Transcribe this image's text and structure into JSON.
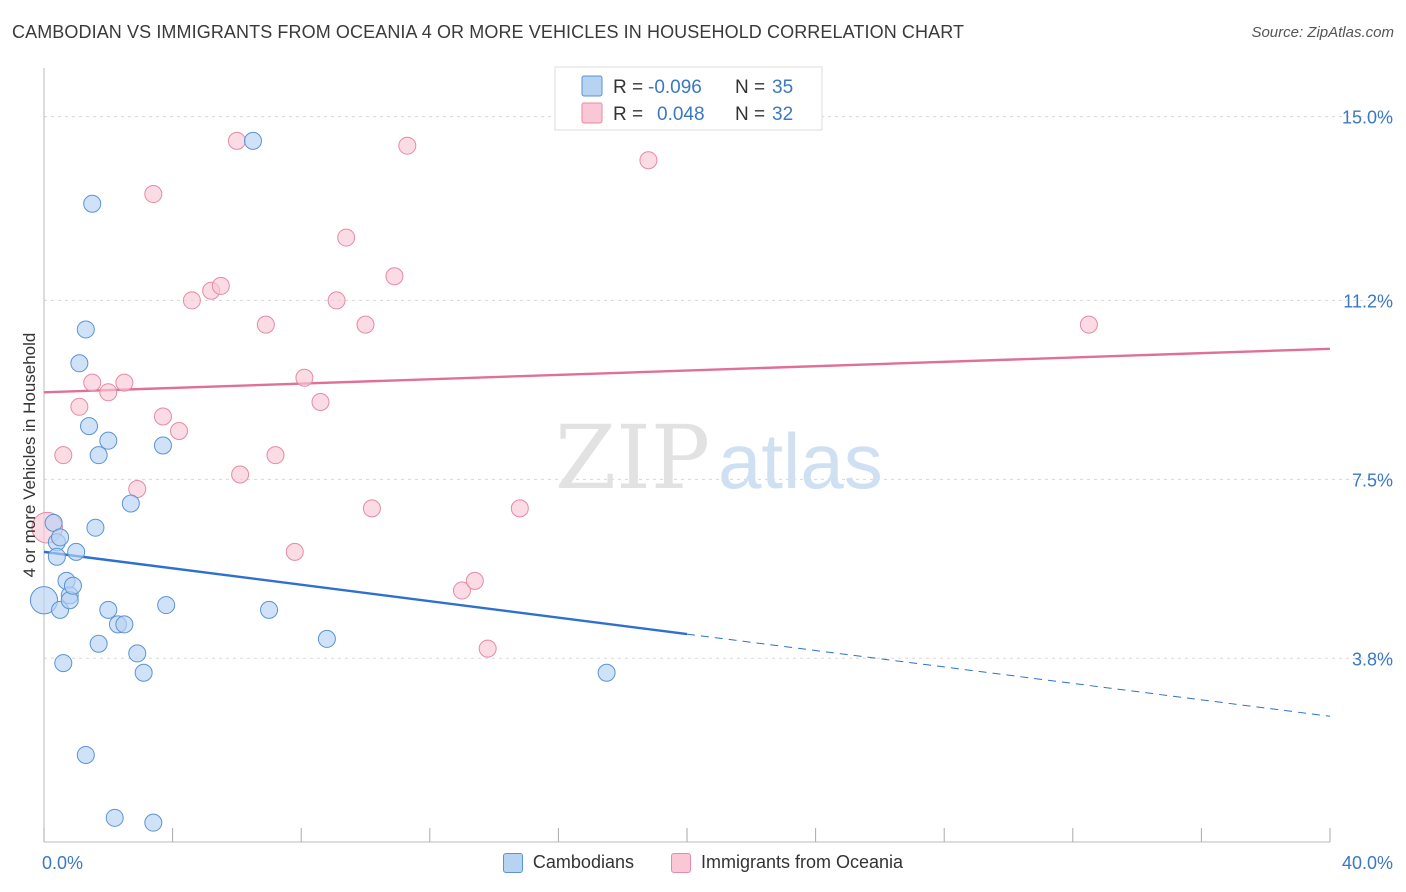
{
  "title": "CAMBODIAN VS IMMIGRANTS FROM OCEANIA 4 OR MORE VEHICLES IN HOUSEHOLD CORRELATION CHART",
  "source": "Source: ZipAtlas.com",
  "watermark": {
    "zip": "ZIP",
    "atlas": "atlas"
  },
  "colors": {
    "cambodians_fill": "#b7d3f2",
    "cambodians_stroke": "#5b93d6",
    "cambodians_line": "#2e6fd0",
    "oceania_fill": "#f9c7d6",
    "oceania_stroke": "#e58aa8",
    "oceania_line": "#e07098",
    "tick_text": "#3b78c4",
    "grid": "#d8d8d8"
  },
  "legend": {
    "rows": [
      {
        "r_label": "R =",
        "r_value": "-0.096",
        "n_label": "N =",
        "n_value": "35"
      },
      {
        "r_label": "R =",
        "r_value": "0.048",
        "n_label": "N =",
        "n_value": "32"
      }
    ]
  },
  "bottom_legend": [
    "Cambodians",
    "Immigrants from Oceania"
  ],
  "chart_data": {
    "type": "scatter",
    "xlabel": "",
    "ylabel": "4 or more Vehicles in Household",
    "xlim": [
      0,
      40
    ],
    "ylim": [
      0,
      15.8
    ],
    "x_tick_labels": [
      "0.0%",
      "40.0%"
    ],
    "y_ticks": [
      3.8,
      7.5,
      11.2,
      15.0
    ],
    "y_tick_labels": [
      "3.8%",
      "7.5%",
      "11.2%",
      "15.0%"
    ],
    "grid": true,
    "legend_position": "top-center",
    "series": [
      {
        "name": "Cambodians",
        "points": [
          [
            0.0,
            5.0,
            1.6
          ],
          [
            0.3,
            6.6,
            1
          ],
          [
            0.4,
            6.2,
            1
          ],
          [
            0.5,
            6.3,
            1
          ],
          [
            0.4,
            5.9,
            1
          ],
          [
            0.5,
            4.8,
            1
          ],
          [
            0.6,
            3.7,
            1
          ],
          [
            0.7,
            5.4,
            1
          ],
          [
            0.8,
            5.1,
            1
          ],
          [
            0.8,
            5.0,
            1
          ],
          [
            0.9,
            5.3,
            1
          ],
          [
            1.0,
            6.0,
            1
          ],
          [
            1.1,
            9.9,
            1
          ],
          [
            1.3,
            10.6,
            1
          ],
          [
            1.3,
            1.8,
            1
          ],
          [
            1.4,
            8.6,
            1
          ],
          [
            1.5,
            13.2,
            1
          ],
          [
            1.6,
            6.5,
            1
          ],
          [
            1.7,
            8.0,
            1
          ],
          [
            1.7,
            4.1,
            1
          ],
          [
            2.0,
            8.3,
            1
          ],
          [
            2.0,
            4.8,
            1
          ],
          [
            2.2,
            0.5,
            1
          ],
          [
            2.3,
            4.5,
            1
          ],
          [
            2.5,
            4.5,
            1
          ],
          [
            2.7,
            7.0,
            1
          ],
          [
            2.9,
            3.9,
            1
          ],
          [
            3.1,
            3.5,
            1
          ],
          [
            3.4,
            0.4,
            1
          ],
          [
            3.7,
            8.2,
            1
          ],
          [
            3.8,
            4.9,
            1
          ],
          [
            6.5,
            14.5,
            1
          ],
          [
            7.0,
            4.8,
            1
          ],
          [
            8.8,
            4.2,
            1
          ],
          [
            17.5,
            3.5,
            1
          ]
        ],
        "trend": {
          "x": [
            0,
            20
          ],
          "y": [
            6.0,
            4.3
          ]
        },
        "trend_extension": {
          "x": [
            20,
            40
          ],
          "y": [
            4.3,
            2.6
          ]
        }
      },
      {
        "name": "Immigrants from Oceania",
        "points": [
          [
            0.1,
            6.5,
            1.8
          ],
          [
            0.6,
            8.0,
            1
          ],
          [
            1.1,
            9.0,
            1
          ],
          [
            1.5,
            9.5,
            1
          ],
          [
            2.0,
            9.3,
            1
          ],
          [
            2.5,
            9.5,
            1
          ],
          [
            2.9,
            7.3,
            1
          ],
          [
            3.4,
            13.4,
            1
          ],
          [
            3.7,
            8.8,
            1
          ],
          [
            4.2,
            8.5,
            1
          ],
          [
            4.6,
            11.2,
            1
          ],
          [
            5.2,
            11.4,
            1
          ],
          [
            5.5,
            11.5,
            1
          ],
          [
            6.1,
            7.6,
            1
          ],
          [
            6.0,
            14.5,
            1
          ],
          [
            6.9,
            10.7,
            1
          ],
          [
            7.2,
            8.0,
            1
          ],
          [
            7.8,
            6.0,
            1
          ],
          [
            8.1,
            9.6,
            1
          ],
          [
            8.6,
            9.1,
            1
          ],
          [
            9.1,
            11.2,
            1
          ],
          [
            9.4,
            12.5,
            1
          ],
          [
            10.0,
            10.7,
            1
          ],
          [
            10.2,
            6.9,
            1
          ],
          [
            10.9,
            11.7,
            1
          ],
          [
            11.3,
            14.4,
            1
          ],
          [
            13.0,
            5.2,
            1
          ],
          [
            13.4,
            5.4,
            1
          ],
          [
            13.8,
            4.0,
            1
          ],
          [
            14.8,
            6.9,
            1
          ],
          [
            18.8,
            14.1,
            1
          ],
          [
            32.5,
            10.7,
            1
          ]
        ],
        "trend": {
          "x": [
            0,
            40
          ],
          "y": [
            9.3,
            10.2
          ]
        }
      }
    ]
  }
}
